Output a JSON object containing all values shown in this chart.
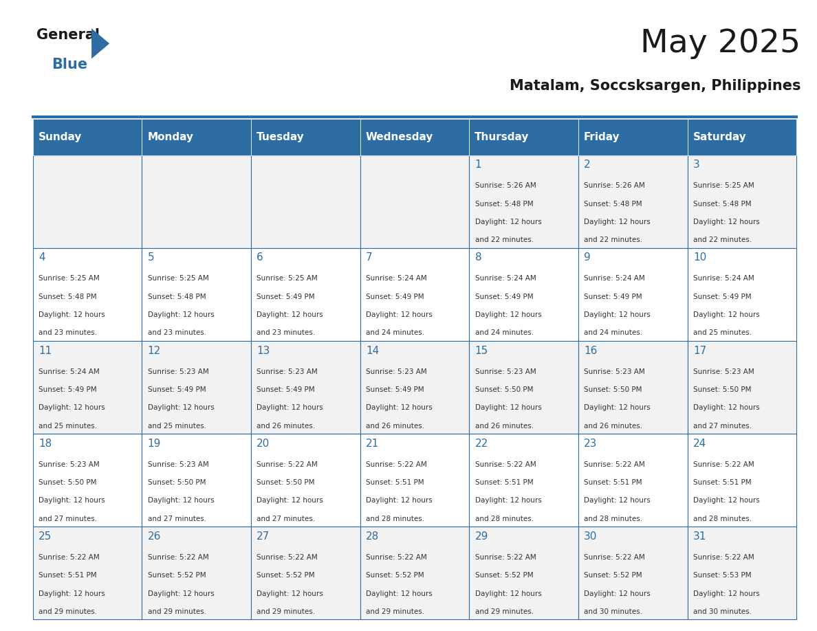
{
  "title": "May 2025",
  "subtitle": "Matalam, Soccsksargen, Philippines",
  "days_of_week": [
    "Sunday",
    "Monday",
    "Tuesday",
    "Wednesday",
    "Thursday",
    "Friday",
    "Saturday"
  ],
  "header_bg": "#2E6DA4",
  "header_text": "#FFFFFF",
  "cell_bg_light": "#F2F2F2",
  "cell_bg_white": "#FFFFFF",
  "cell_border": "#2E6DA4",
  "day_num_color": "#2E6DA4",
  "text_color": "#333333",
  "logo_general_color": "#1a1a1a",
  "logo_blue_color": "#2E6DA4",
  "weeks": [
    [
      {
        "day": null,
        "sunrise": null,
        "sunset": null,
        "daylight": null
      },
      {
        "day": null,
        "sunrise": null,
        "sunset": null,
        "daylight": null
      },
      {
        "day": null,
        "sunrise": null,
        "sunset": null,
        "daylight": null
      },
      {
        "day": null,
        "sunrise": null,
        "sunset": null,
        "daylight": null
      },
      {
        "day": 1,
        "sunrise": "5:26 AM",
        "sunset": "5:48 PM",
        "daylight": "12 hours and 22 minutes."
      },
      {
        "day": 2,
        "sunrise": "5:26 AM",
        "sunset": "5:48 PM",
        "daylight": "12 hours and 22 minutes."
      },
      {
        "day": 3,
        "sunrise": "5:25 AM",
        "sunset": "5:48 PM",
        "daylight": "12 hours and 22 minutes."
      }
    ],
    [
      {
        "day": 4,
        "sunrise": "5:25 AM",
        "sunset": "5:48 PM",
        "daylight": "12 hours and 23 minutes."
      },
      {
        "day": 5,
        "sunrise": "5:25 AM",
        "sunset": "5:48 PM",
        "daylight": "12 hours and 23 minutes."
      },
      {
        "day": 6,
        "sunrise": "5:25 AM",
        "sunset": "5:49 PM",
        "daylight": "12 hours and 23 minutes."
      },
      {
        "day": 7,
        "sunrise": "5:24 AM",
        "sunset": "5:49 PM",
        "daylight": "12 hours and 24 minutes."
      },
      {
        "day": 8,
        "sunrise": "5:24 AM",
        "sunset": "5:49 PM",
        "daylight": "12 hours and 24 minutes."
      },
      {
        "day": 9,
        "sunrise": "5:24 AM",
        "sunset": "5:49 PM",
        "daylight": "12 hours and 24 minutes."
      },
      {
        "day": 10,
        "sunrise": "5:24 AM",
        "sunset": "5:49 PM",
        "daylight": "12 hours and 25 minutes."
      }
    ],
    [
      {
        "day": 11,
        "sunrise": "5:24 AM",
        "sunset": "5:49 PM",
        "daylight": "12 hours and 25 minutes."
      },
      {
        "day": 12,
        "sunrise": "5:23 AM",
        "sunset": "5:49 PM",
        "daylight": "12 hours and 25 minutes."
      },
      {
        "day": 13,
        "sunrise": "5:23 AM",
        "sunset": "5:49 PM",
        "daylight": "12 hours and 26 minutes."
      },
      {
        "day": 14,
        "sunrise": "5:23 AM",
        "sunset": "5:49 PM",
        "daylight": "12 hours and 26 minutes."
      },
      {
        "day": 15,
        "sunrise": "5:23 AM",
        "sunset": "5:50 PM",
        "daylight": "12 hours and 26 minutes."
      },
      {
        "day": 16,
        "sunrise": "5:23 AM",
        "sunset": "5:50 PM",
        "daylight": "12 hours and 26 minutes."
      },
      {
        "day": 17,
        "sunrise": "5:23 AM",
        "sunset": "5:50 PM",
        "daylight": "12 hours and 27 minutes."
      }
    ],
    [
      {
        "day": 18,
        "sunrise": "5:23 AM",
        "sunset": "5:50 PM",
        "daylight": "12 hours and 27 minutes."
      },
      {
        "day": 19,
        "sunrise": "5:23 AM",
        "sunset": "5:50 PM",
        "daylight": "12 hours and 27 minutes."
      },
      {
        "day": 20,
        "sunrise": "5:22 AM",
        "sunset": "5:50 PM",
        "daylight": "12 hours and 27 minutes."
      },
      {
        "day": 21,
        "sunrise": "5:22 AM",
        "sunset": "5:51 PM",
        "daylight": "12 hours and 28 minutes."
      },
      {
        "day": 22,
        "sunrise": "5:22 AM",
        "sunset": "5:51 PM",
        "daylight": "12 hours and 28 minutes."
      },
      {
        "day": 23,
        "sunrise": "5:22 AM",
        "sunset": "5:51 PM",
        "daylight": "12 hours and 28 minutes."
      },
      {
        "day": 24,
        "sunrise": "5:22 AM",
        "sunset": "5:51 PM",
        "daylight": "12 hours and 28 minutes."
      }
    ],
    [
      {
        "day": 25,
        "sunrise": "5:22 AM",
        "sunset": "5:51 PM",
        "daylight": "12 hours and 29 minutes."
      },
      {
        "day": 26,
        "sunrise": "5:22 AM",
        "sunset": "5:52 PM",
        "daylight": "12 hours and 29 minutes."
      },
      {
        "day": 27,
        "sunrise": "5:22 AM",
        "sunset": "5:52 PM",
        "daylight": "12 hours and 29 minutes."
      },
      {
        "day": 28,
        "sunrise": "5:22 AM",
        "sunset": "5:52 PM",
        "daylight": "12 hours and 29 minutes."
      },
      {
        "day": 29,
        "sunrise": "5:22 AM",
        "sunset": "5:52 PM",
        "daylight": "12 hours and 29 minutes."
      },
      {
        "day": 30,
        "sunrise": "5:22 AM",
        "sunset": "5:52 PM",
        "daylight": "12 hours and 30 minutes."
      },
      {
        "day": 31,
        "sunrise": "5:22 AM",
        "sunset": "5:53 PM",
        "daylight": "12 hours and 30 minutes."
      }
    ]
  ]
}
